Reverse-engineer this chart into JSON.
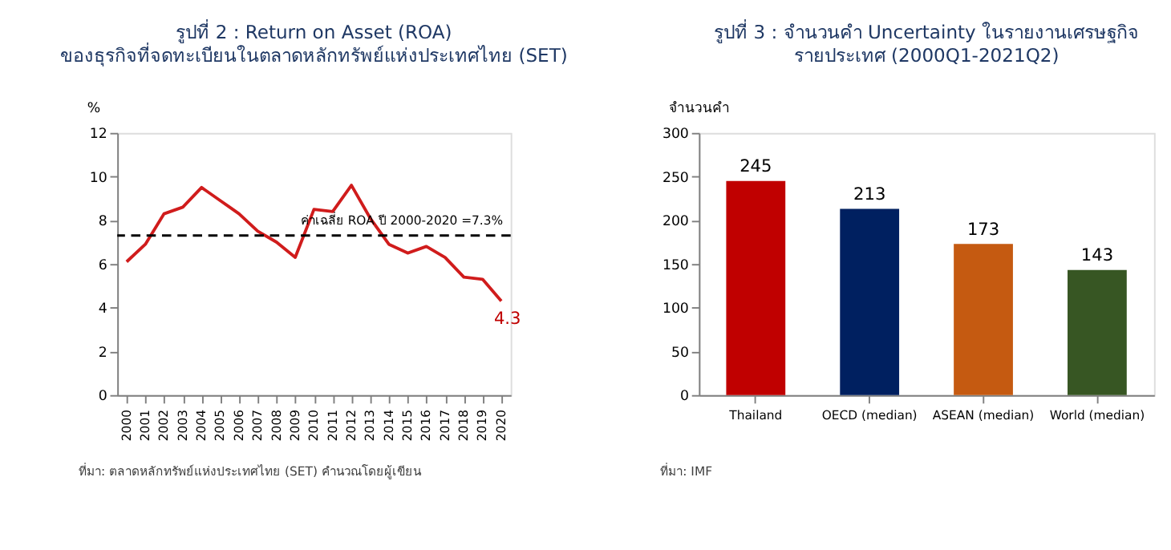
{
  "chart_data": [
    {
      "type": "line",
      "title": "รูปที่ 2 : Return on Asset (ROA)",
      "subtitle": "ของธุรกิจที่จดทะเบียนในตลาดหลักทรัพย์แห่งประเทศไทย (SET)",
      "ylabel": "%",
      "categories": [
        "2000",
        "2001",
        "2002",
        "2003",
        "2004",
        "2005",
        "2006",
        "2007",
        "2008",
        "2009",
        "2010",
        "2011",
        "2012",
        "2013",
        "2014",
        "2015",
        "2016",
        "2017",
        "2018",
        "2019",
        "2020"
      ],
      "series": [
        {
          "color": "#d01c1c",
          "values": [
            6.1,
            6.9,
            8.3,
            8.6,
            9.5,
            8.9,
            8.3,
            7.5,
            7.0,
            6.3,
            8.5,
            8.4,
            9.6,
            8.1,
            6.9,
            6.5,
            6.8,
            6.3,
            5.4,
            5.3,
            4.3
          ]
        }
      ],
      "ylim": [
        0,
        12
      ],
      "yticks": [
        0,
        2,
        4,
        6,
        8,
        10,
        12
      ],
      "grid": false,
      "marker": "none",
      "line_style": "solid",
      "ref_lines": [
        {
          "axis": "y",
          "value": 7.3,
          "label": "ค่าเฉลี่ย ROA ปี 2000-2020 =7.3%",
          "color": "#000000",
          "line_style": "dashed"
        }
      ],
      "annotations": [
        {
          "text": "4.3",
          "x": "2020",
          "y": 4.3
        },
        "ที่มา: ตลาดหลักทรัพย์แห่งประเทศไทย (SET) คำนวณโดยผู้เขียน"
      ]
    },
    {
      "type": "bar",
      "title": "รูปที่ 3 : จำนวนคำ Uncertainty ในรายงานเศรษฐกิจ",
      "subtitle": "รายประเทศ (2000Q1-2021Q2)",
      "ylabel": "จำนวนคำ",
      "categories": [
        "Thailand",
        "OECD (median)",
        "ASEAN (median)",
        "World (median)"
      ],
      "values": [
        245,
        213,
        173,
        143
      ],
      "colors": [
        "#c00000",
        "#002060",
        "#c55a11",
        "#375623"
      ],
      "ylim": [
        0,
        300
      ],
      "yticks": [
        0,
        50,
        100,
        150,
        200,
        250,
        300
      ],
      "grid": false,
      "data_labels": true,
      "annotations": [
        "ที่มา: IMF"
      ]
    }
  ]
}
